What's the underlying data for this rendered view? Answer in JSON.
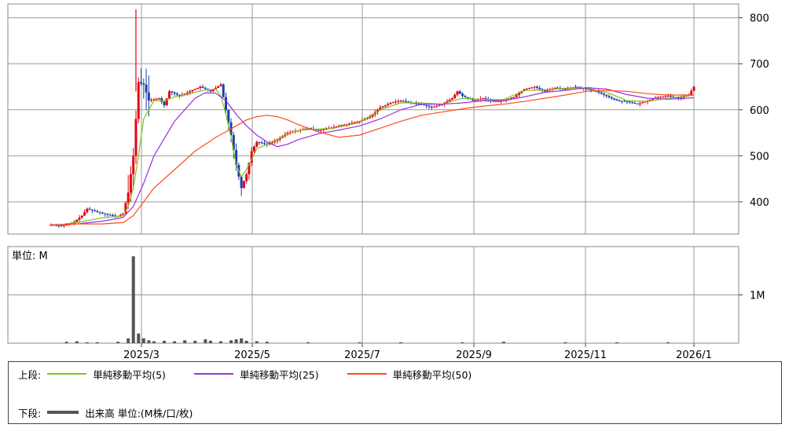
{
  "chart_data": [
    {
      "type": "candlestick",
      "panel": "price",
      "x_ticks": [
        "2025/3",
        "2025/5",
        "2025/7",
        "2025/9",
        "2025/11",
        "2026/1"
      ],
      "y_ticks": [
        400,
        500,
        600,
        700,
        800
      ],
      "ylim": [
        330,
        830
      ],
      "grid": true,
      "up_color": "#e60012",
      "down_color": "#1a3fa8",
      "price_path": [
        [
          0,
          350
        ],
        [
          2,
          348
        ],
        [
          4,
          352
        ],
        [
          6,
          370
        ],
        [
          7,
          385
        ],
        [
          9,
          378
        ],
        [
          11,
          372
        ],
        [
          13,
          368
        ],
        [
          14,
          375
        ],
        [
          15,
          420
        ],
        [
          16,
          500
        ],
        [
          17,
          660
        ],
        [
          18,
          655
        ],
        [
          19,
          620
        ],
        [
          21,
          625
        ],
        [
          22,
          610
        ],
        [
          23,
          640
        ],
        [
          25,
          630
        ],
        [
          27,
          640
        ],
        [
          29,
          650
        ],
        [
          31,
          640
        ],
        [
          33,
          655
        ],
        [
          34,
          600
        ],
        [
          35,
          545
        ],
        [
          36,
          480
        ],
        [
          37,
          430
        ],
        [
          38,
          460
        ],
        [
          39,
          510
        ],
        [
          40,
          530
        ],
        [
          42,
          525
        ],
        [
          44,
          535
        ],
        [
          46,
          550
        ],
        [
          48,
          555
        ],
        [
          50,
          560
        ],
        [
          52,
          555
        ],
        [
          54,
          560
        ],
        [
          56,
          565
        ],
        [
          58,
          570
        ],
        [
          60,
          575
        ],
        [
          62,
          585
        ],
        [
          64,
          605
        ],
        [
          66,
          615
        ],
        [
          68,
          620
        ],
        [
          70,
          615
        ],
        [
          72,
          612
        ],
        [
          74,
          605
        ],
        [
          76,
          612
        ],
        [
          78,
          625
        ],
        [
          79,
          640
        ],
        [
          80,
          630
        ],
        [
          82,
          620
        ],
        [
          84,
          625
        ],
        [
          86,
          618
        ],
        [
          88,
          620
        ],
        [
          90,
          628
        ],
        [
          92,
          645
        ],
        [
          94,
          650
        ],
        [
          96,
          640
        ],
        [
          98,
          648
        ],
        [
          100,
          645
        ],
        [
          102,
          650
        ],
        [
          104,
          645
        ],
        [
          106,
          640
        ],
        [
          108,
          630
        ],
        [
          110,
          620
        ],
        [
          112,
          618
        ],
        [
          114,
          612
        ],
        [
          116,
          620
        ],
        [
          118,
          628
        ],
        [
          120,
          630
        ],
        [
          122,
          625
        ],
        [
          124,
          632
        ],
        [
          125,
          650
        ]
      ],
      "series": [
        {
          "name": "単純移動平均(5)",
          "color": "#7fc31c",
          "x": [
            0,
            5,
            10,
            14,
            15,
            16,
            17,
            18,
            20,
            22,
            24,
            26,
            28,
            30,
            32,
            33,
            34,
            35,
            36,
            37,
            38,
            40,
            42,
            44,
            46,
            48,
            50,
            55,
            60,
            64,
            68,
            72,
            76,
            80,
            84,
            88,
            92,
            96,
            100,
            104,
            108,
            112,
            116,
            120,
            125
          ],
          "values": [
            348,
            355,
            365,
            370,
            390,
            430,
            500,
            580,
            620,
            620,
            628,
            632,
            638,
            643,
            645,
            630,
            590,
            540,
            480,
            455,
            470,
            515,
            525,
            535,
            548,
            555,
            557,
            560,
            572,
            600,
            615,
            615,
            612,
            625,
            622,
            622,
            642,
            643,
            647,
            647,
            638,
            620,
            618,
            625,
            632
          ]
        },
        {
          "name": "単純移動平均(25)",
          "color": "#9b2fe0",
          "x": [
            0,
            5,
            10,
            14,
            16,
            18,
            20,
            24,
            28,
            30,
            32,
            34,
            36,
            38,
            40,
            42,
            44,
            46,
            48,
            52,
            56,
            60,
            64,
            68,
            72,
            76,
            80,
            84,
            88,
            92,
            96,
            100,
            104,
            108,
            112,
            116,
            120,
            125
          ],
          "values": [
            350,
            352,
            358,
            366,
            390,
            440,
            500,
            575,
            625,
            637,
            636,
            620,
            590,
            565,
            545,
            530,
            520,
            525,
            535,
            548,
            556,
            565,
            580,
            600,
            612,
            612,
            615,
            620,
            620,
            628,
            638,
            642,
            648,
            645,
            633,
            625,
            623,
            626
          ]
        },
        {
          "name": "単純移動平均(50)",
          "color": "#ff4c1a",
          "x": [
            0,
            5,
            10,
            14,
            16,
            18,
            20,
            24,
            28,
            30,
            32,
            34,
            36,
            38,
            40,
            42,
            44,
            46,
            48,
            52,
            56,
            60,
            64,
            68,
            72,
            76,
            80,
            84,
            88,
            92,
            96,
            100,
            104,
            108,
            112,
            116,
            120,
            125
          ],
          "values": [
            350,
            352,
            352,
            355,
            370,
            400,
            430,
            470,
            510,
            525,
            540,
            552,
            565,
            578,
            585,
            588,
            585,
            578,
            568,
            552,
            540,
            545,
            560,
            575,
            588,
            595,
            602,
            608,
            612,
            618,
            625,
            632,
            640,
            642,
            640,
            635,
            632,
            632
          ]
        }
      ]
    },
    {
      "type": "bar",
      "panel": "volume",
      "y_tick_labels": [
        "1M"
      ],
      "ylim": [
        0,
        2.0
      ],
      "unit_label": "単位: M",
      "color": "#555555",
      "bars": [
        [
          3,
          0.03
        ],
        [
          5,
          0.04
        ],
        [
          7,
          0.02
        ],
        [
          9,
          0.02
        ],
        [
          13,
          0.03
        ],
        [
          15,
          0.1
        ],
        [
          16,
          1.8
        ],
        [
          17,
          0.2
        ],
        [
          18,
          0.1
        ],
        [
          19,
          0.06
        ],
        [
          20,
          0.04
        ],
        [
          22,
          0.05
        ],
        [
          24,
          0.04
        ],
        [
          26,
          0.06
        ],
        [
          28,
          0.05
        ],
        [
          30,
          0.08
        ],
        [
          31,
          0.05
        ],
        [
          33,
          0.04
        ],
        [
          35,
          0.06
        ],
        [
          36,
          0.08
        ],
        [
          37,
          0.1
        ],
        [
          38,
          0.05
        ],
        [
          40,
          0.04
        ],
        [
          42,
          0.03
        ],
        [
          50,
          0.02
        ],
        [
          60,
          0.02
        ],
        [
          68,
          0.02
        ],
        [
          80,
          0.02
        ],
        [
          88,
          0.03
        ],
        [
          100,
          0.02
        ],
        [
          110,
          0.02
        ],
        [
          120,
          0.02
        ]
      ]
    }
  ],
  "legend": {
    "upper_label": "上段:",
    "lower_label": "下段:",
    "ma5": "単純移動平均(5)",
    "ma25": "単純移動平均(25)",
    "ma50": "単純移動平均(50)",
    "volume": "出来高 単位:(M株/口/枚)",
    "colors": {
      "ma5": "#7fc31c",
      "ma25": "#9b2fe0",
      "ma50": "#ff4c1a",
      "volume": "#555555"
    }
  }
}
